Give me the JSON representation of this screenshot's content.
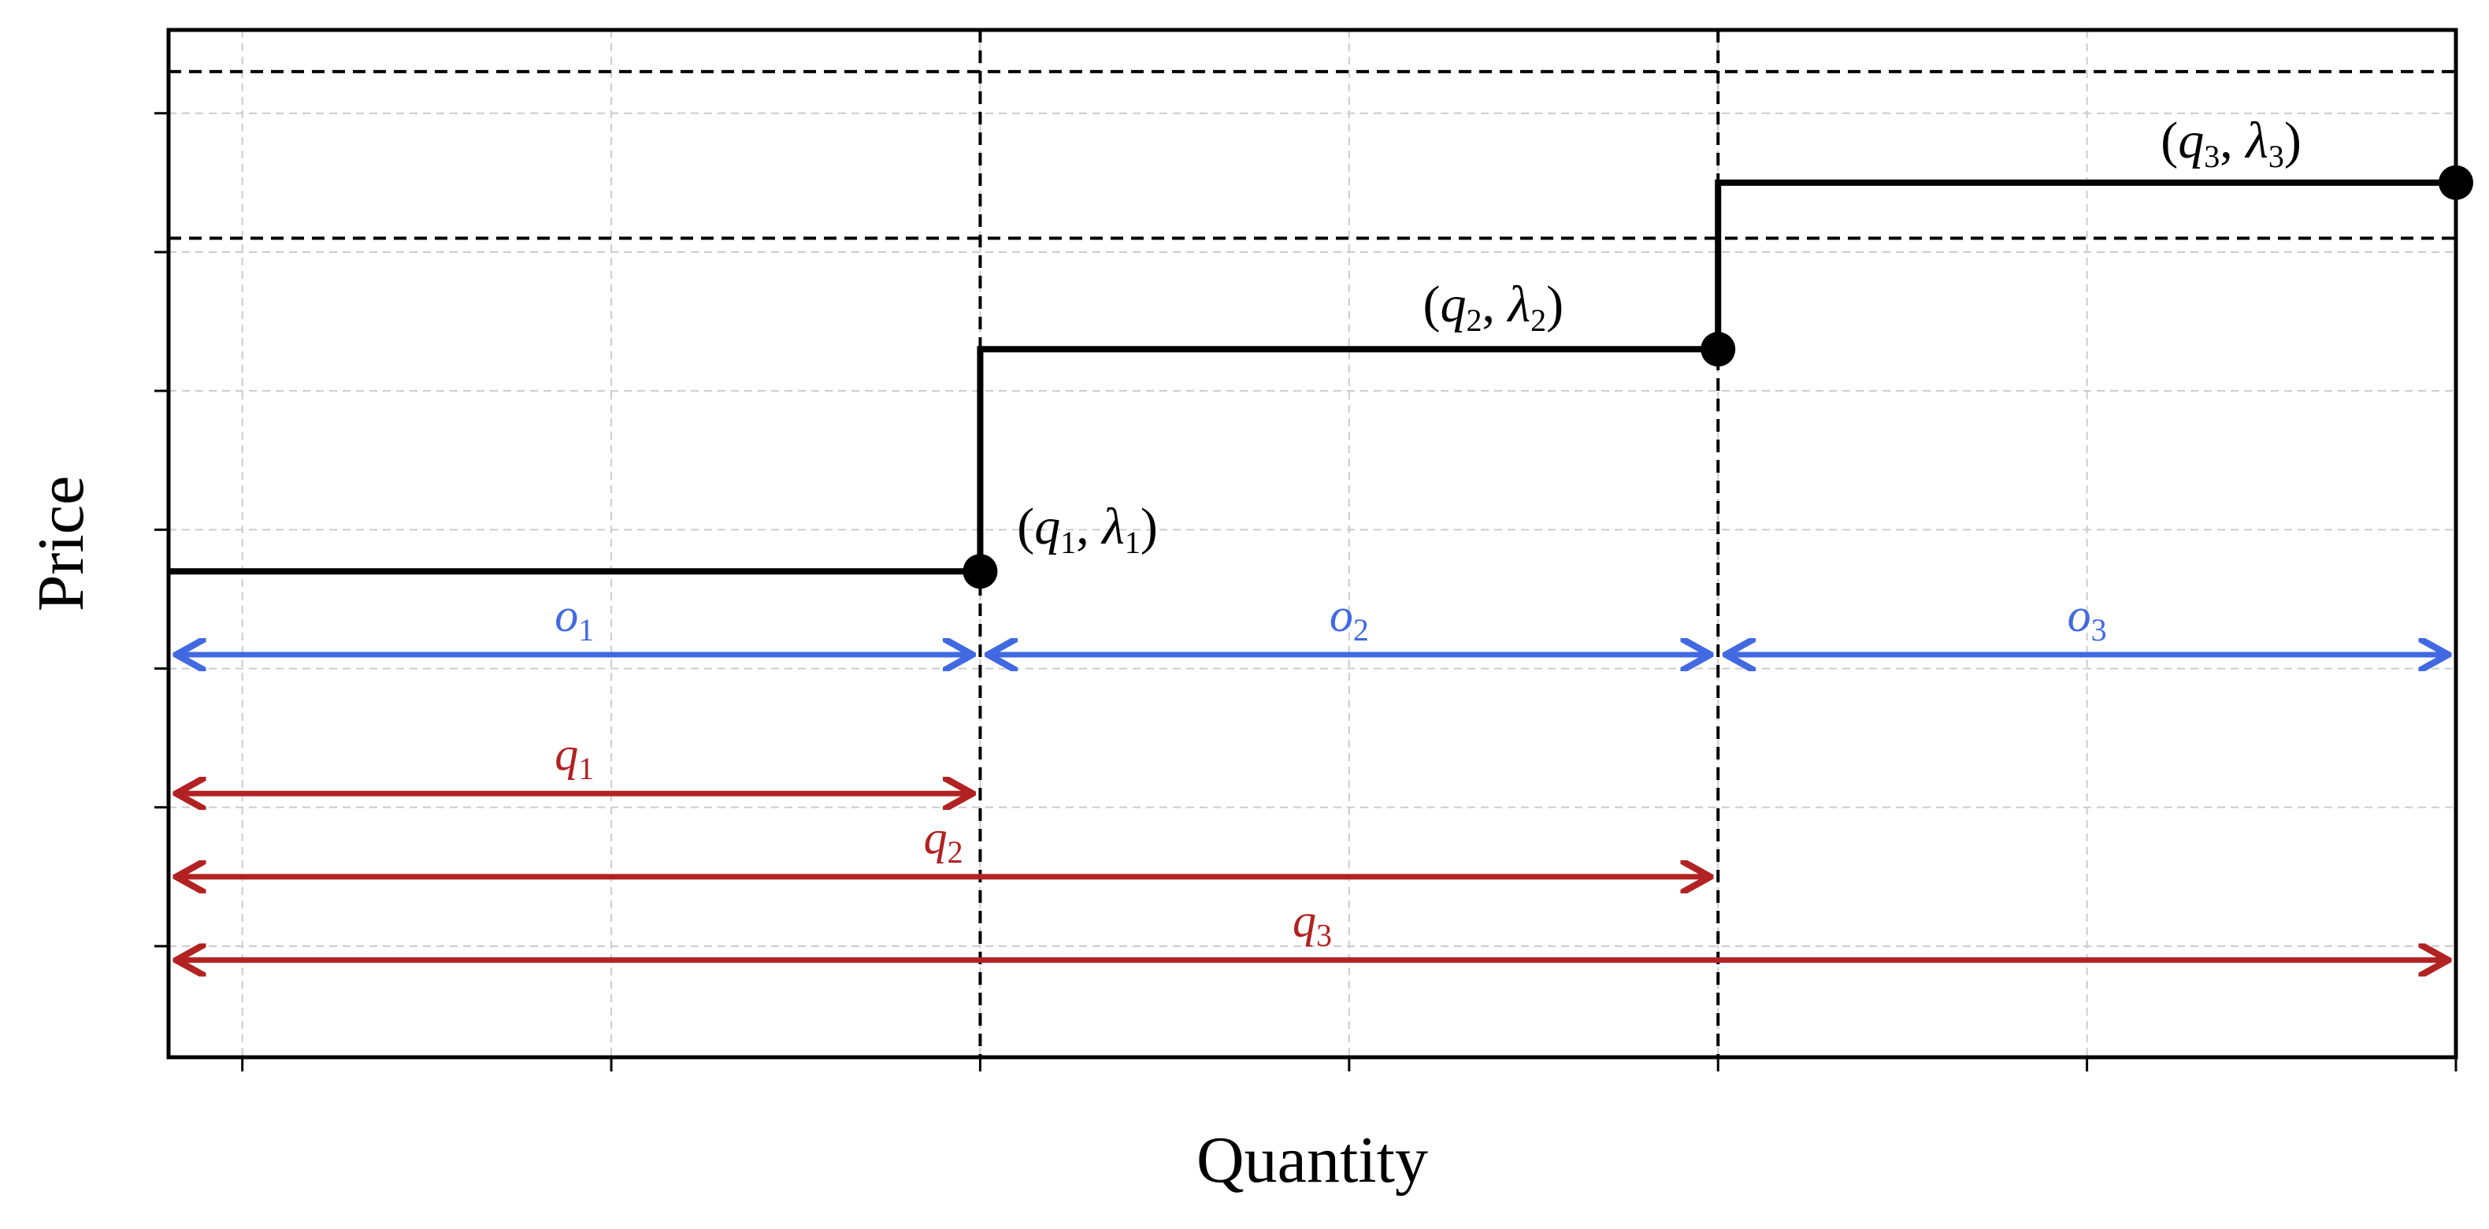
{
  "chart_data": {
    "type": "line",
    "subtype": "step",
    "xlabel": "Quantity",
    "ylabel": "Price",
    "xlim": [
      -0.1,
      3.0
    ],
    "ylim": [
      -0.15,
      3.55
    ],
    "grid": true,
    "x_ticks": [
      0,
      0.5,
      1.0,
      1.5,
      2.0,
      2.5,
      3.0
    ],
    "y_ticks": [
      0.25,
      0.75,
      1.25,
      1.75,
      2.25,
      2.75,
      3.25
    ],
    "tick_labels_shown": false,
    "step_curve": {
      "points": [
        [
          -0.1,
          1.6
        ],
        [
          1.0,
          1.6
        ],
        [
          1.0,
          2.4
        ],
        [
          2.0,
          2.4
        ],
        [
          2.0,
          3.0
        ],
        [
          3.0,
          3.0
        ]
      ],
      "color": "#000000"
    },
    "markers": [
      [
        1.0,
        1.6
      ],
      [
        2.0,
        2.4
      ],
      [
        3.0,
        3.0
      ]
    ],
    "reference_lines": {
      "vertical_x": [
        1.0,
        2.0
      ],
      "horizontal_y": [
        2.8,
        3.4
      ],
      "style": "dashed"
    },
    "annotations": [
      {
        "var": "q",
        "sub": "1",
        "lam": "λ",
        "lamsub": "1",
        "x": 1.05,
        "y": 1.7
      },
      {
        "var": "q",
        "sub": "2",
        "lam": "λ",
        "lamsub": "2",
        "x": 1.6,
        "y": 2.5
      },
      {
        "var": "q",
        "sub": "3",
        "lam": "λ",
        "lamsub": "3",
        "x": 2.6,
        "y": 3.09
      }
    ],
    "offer_segments": {
      "color": "#4169e1",
      "y": 1.3,
      "items": [
        {
          "name": "o",
          "sub": "1",
          "start": -0.1,
          "end": 1.0
        },
        {
          "name": "o",
          "sub": "2",
          "start": 1.0,
          "end": 2.0
        },
        {
          "name": "o",
          "sub": "3",
          "start": 2.0,
          "end": 3.0
        }
      ]
    },
    "cumulative_quantities": {
      "color": "#b22222",
      "items": [
        {
          "name": "q",
          "sub": "1",
          "start": -0.1,
          "end": 1.0,
          "y": 0.8
        },
        {
          "name": "q",
          "sub": "2",
          "start": -0.1,
          "end": 2.0,
          "y": 0.5
        },
        {
          "name": "q",
          "sub": "3",
          "start": -0.1,
          "end": 3.0,
          "y": 0.2
        }
      ]
    }
  }
}
